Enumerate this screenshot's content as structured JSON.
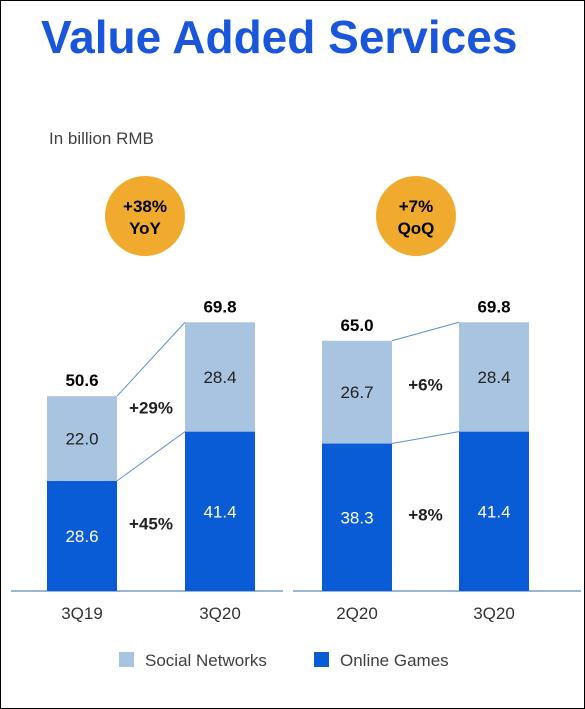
{
  "title": "Value Added Services",
  "unit_label": "In billion RMB",
  "colors": {
    "social": "#a9c4e0",
    "games": "#0a5bd6",
    "badge": "#f0ab2e",
    "title": "#1a56db",
    "connector": "#5b8fd6"
  },
  "chart_data": [
    {
      "type": "bar",
      "stacked": true,
      "categories": [
        "3Q19",
        "3Q20"
      ],
      "series": [
        {
          "name": "Online Games",
          "values": [
            28.6,
            41.4
          ]
        },
        {
          "name": "Social Networks",
          "values": [
            22.0,
            28.4
          ]
        }
      ],
      "totals": [
        50.6,
        69.8
      ],
      "growth_badge": [
        "+38%",
        "YoY"
      ],
      "segment_growth": {
        "Social Networks": "+29%",
        "Online Games": "+45%"
      }
    },
    {
      "type": "bar",
      "stacked": true,
      "categories": [
        "2Q20",
        "3Q20"
      ],
      "series": [
        {
          "name": "Online Games",
          "values": [
            38.3,
            41.4
          ]
        },
        {
          "name": "Social Networks",
          "values": [
            26.7,
            28.4
          ]
        }
      ],
      "totals": [
        65.0,
        69.8
      ],
      "growth_badge": [
        "+7%",
        "QoQ"
      ],
      "segment_growth": {
        "Social Networks": "+6%",
        "Online Games": "+8%"
      }
    }
  ],
  "legend": [
    {
      "label": "Social Networks",
      "icon": "square-social"
    },
    {
      "label": "Online Games",
      "icon": "square-games"
    }
  ]
}
